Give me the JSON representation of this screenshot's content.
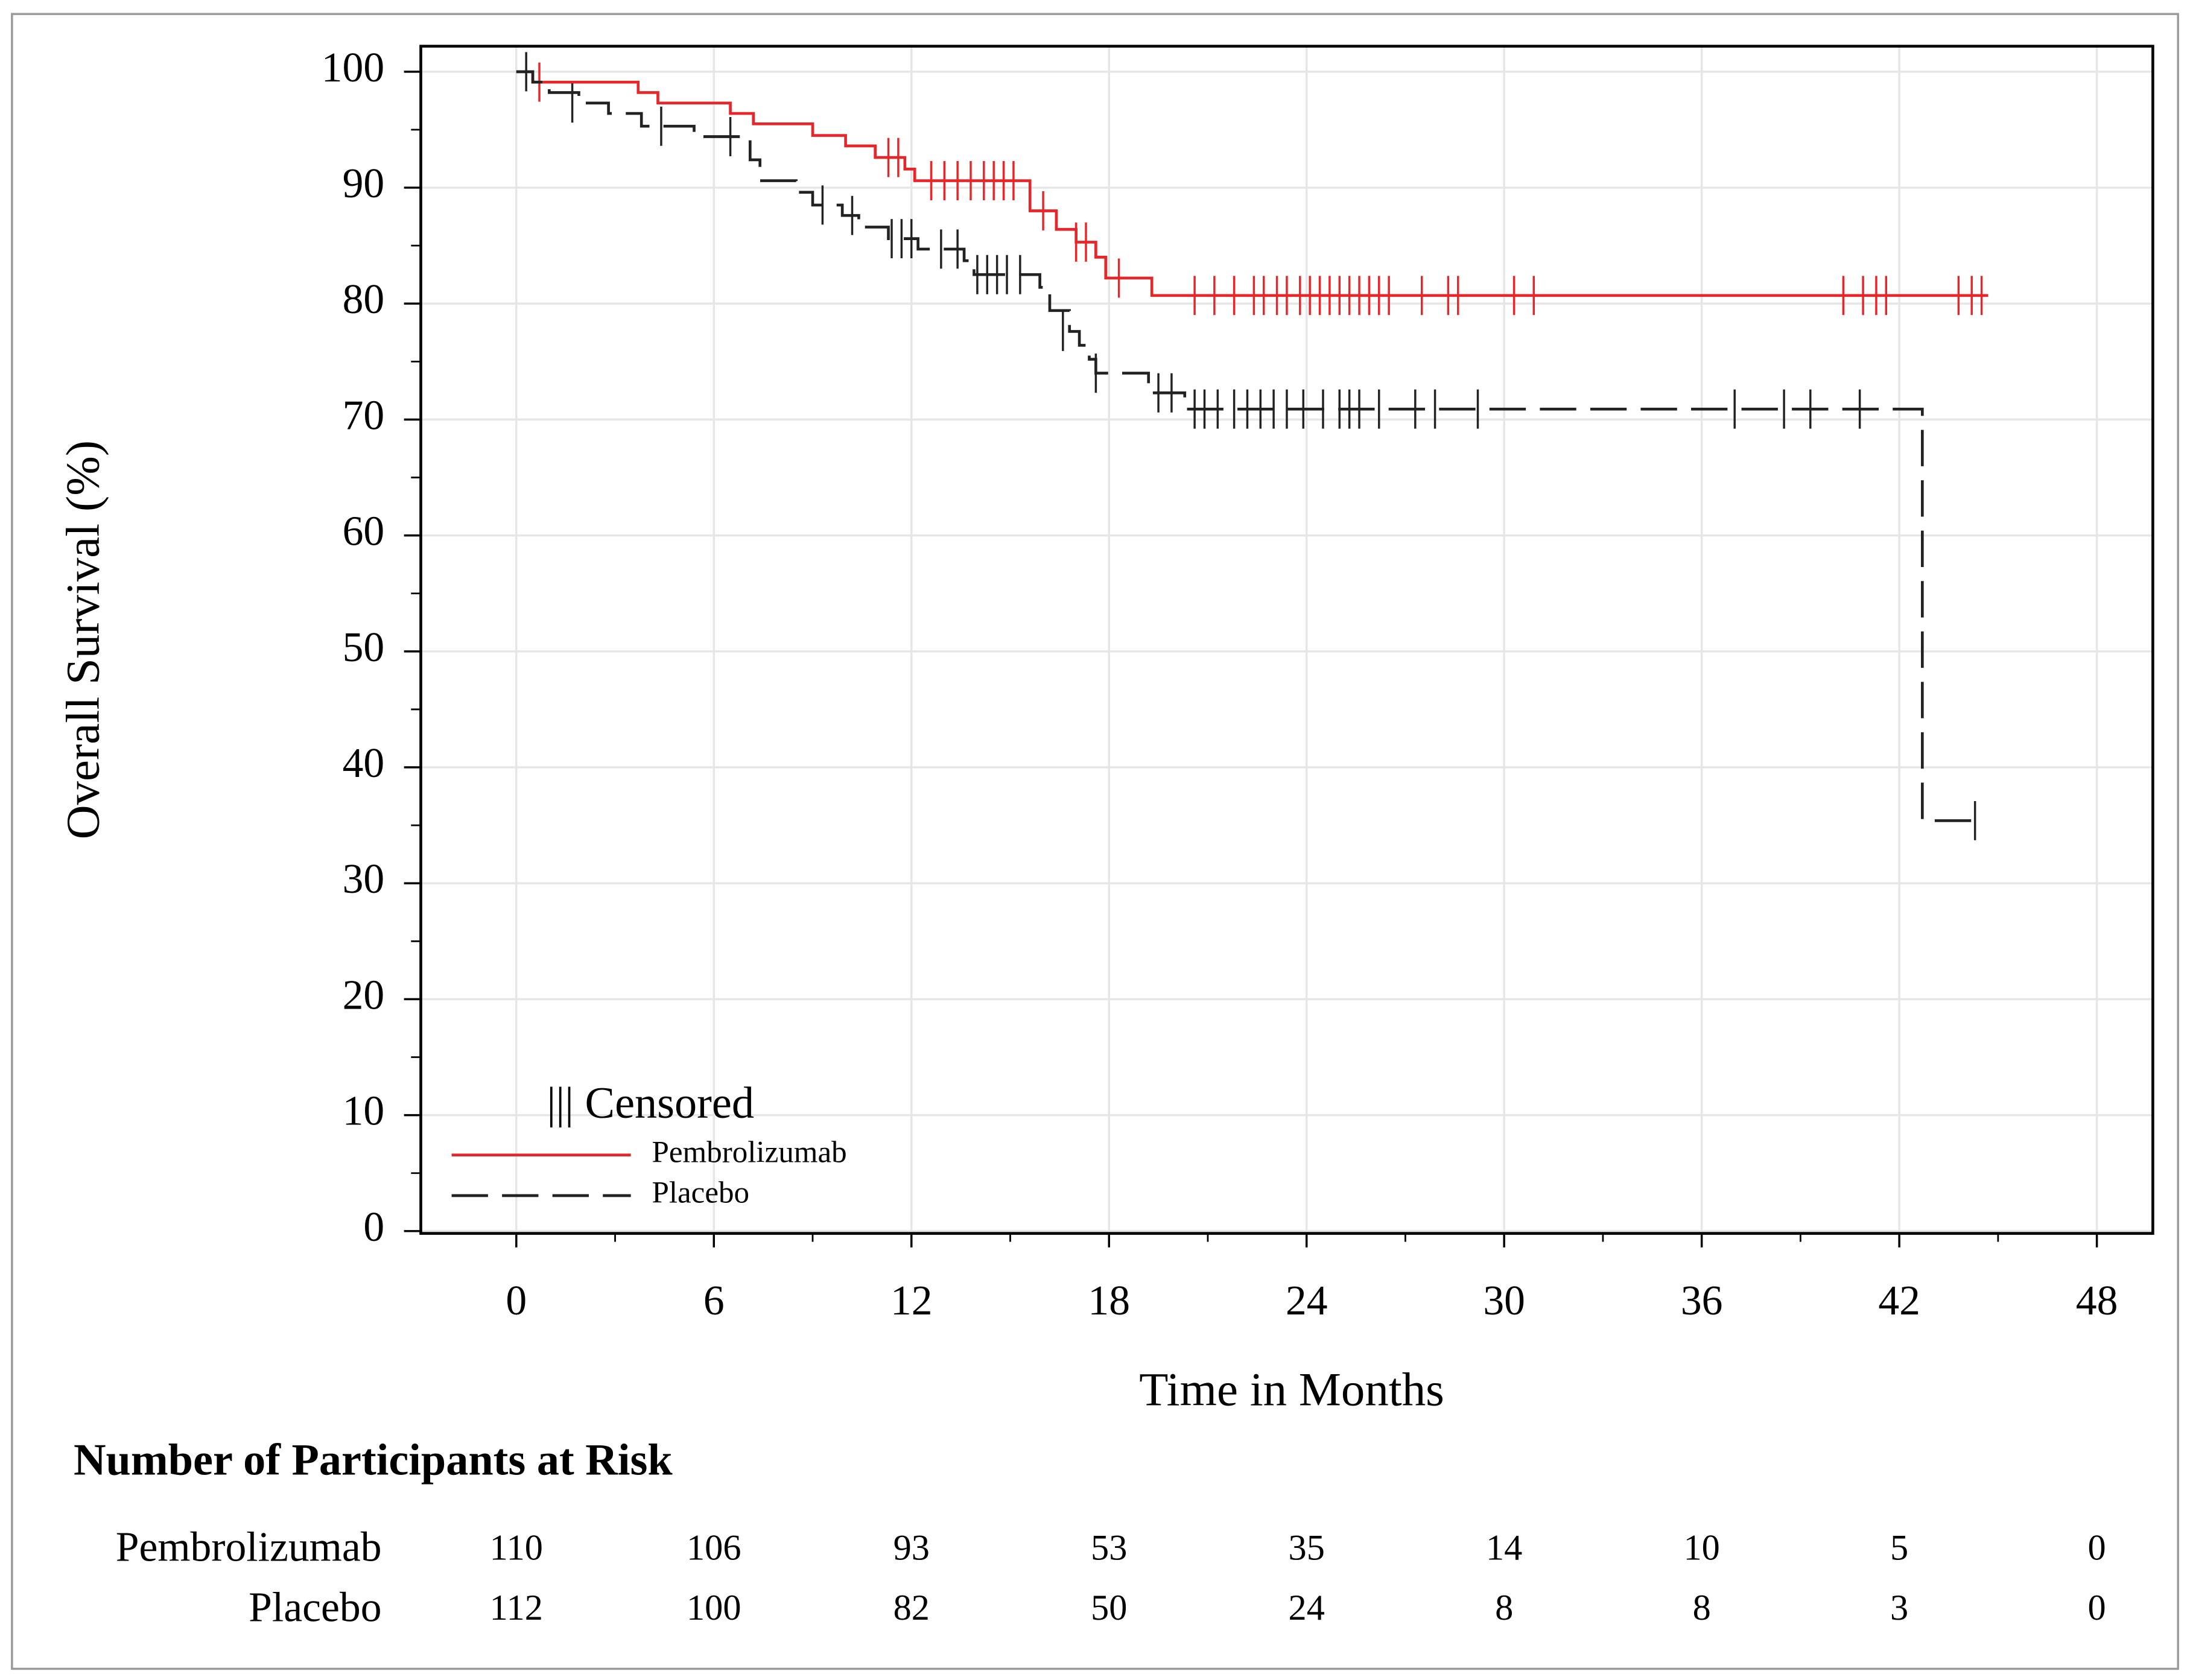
{
  "chart_data": {
    "type": "km",
    "ylabel": "Overall Survival (%)",
    "xlabel": "Time in Months",
    "xlim": [
      -2.9,
      49.7
    ],
    "xticks": [
      0,
      6,
      12,
      18,
      24,
      30,
      36,
      42,
      48
    ],
    "ylim": [
      -0.2,
      102.2
    ],
    "yticks": [
      0,
      10,
      20,
      30,
      40,
      50,
      60,
      70,
      80,
      90,
      100
    ],
    "grid": true,
    "censor_label": "||| Censored",
    "series": [
      {
        "name": "Pembrolizumab",
        "color": "#e8262a",
        "dash": false,
        "x": [
          0,
          0.5,
          3.7,
          4.3,
          6.5,
          7.2,
          9.0,
          10.0,
          10.9,
          11.8,
          12.1,
          15.6,
          16.4,
          17.0,
          17.6,
          17.9,
          19.3,
          44.7
        ],
        "values": [
          100,
          99.1,
          98.2,
          97.3,
          96.4,
          95.5,
          94.5,
          93.6,
          92.6,
          91.6,
          90.6,
          88.0,
          86.4,
          85.3,
          84.0,
          82.2,
          80.7,
          80.7
        ],
        "censored": {
          "x": [
            0.7,
            11.3,
            11.6,
            12.6,
            13.0,
            13.4,
            13.8,
            14.2,
            14.5,
            14.8,
            15.1,
            16.0,
            17.0,
            17.3,
            18.3,
            20.6,
            21.2,
            21.8,
            22.4,
            22.7,
            23.1,
            23.4,
            23.8,
            24.1,
            24.4,
            24.7,
            25.0,
            25.3,
            25.6,
            25.9,
            26.2,
            26.5,
            27.5,
            28.3,
            28.6,
            30.3,
            30.9,
            40.3,
            40.9,
            41.3,
            41.6,
            43.8,
            44.2,
            44.5
          ],
          "values": [
            99.1,
            92.6,
            92.6,
            90.6,
            90.6,
            90.6,
            90.6,
            90.6,
            90.6,
            90.6,
            90.6,
            88.0,
            85.3,
            85.3,
            82.2,
            80.7,
            80.7,
            80.7,
            80.7,
            80.7,
            80.7,
            80.7,
            80.7,
            80.7,
            80.7,
            80.7,
            80.7,
            80.7,
            80.7,
            80.7,
            80.7,
            80.7,
            80.7,
            80.7,
            80.7,
            80.7,
            80.7,
            80.7,
            80.7,
            80.7,
            80.7,
            80.7,
            80.7,
            80.7
          ]
        }
      },
      {
        "name": "Placebo",
        "color": "#222222",
        "dash": true,
        "x": [
          0,
          0.5,
          1.0,
          1.9,
          2.8,
          3.8,
          5.4,
          7.1,
          7.4,
          8.5,
          9.0,
          9.9,
          10.4,
          11.3,
          12.2,
          13.6,
          13.9,
          15.9,
          16.2,
          16.8,
          17.1,
          17.4,
          17.6,
          19.2,
          20.3,
          42.7,
          44.3
        ],
        "values": [
          100,
          99.1,
          98.2,
          97.3,
          96.4,
          95.3,
          94.4,
          92.4,
          90.6,
          89.6,
          88.5,
          87.6,
          86.6,
          85.6,
          84.7,
          83.7,
          82.5,
          81.4,
          79.4,
          77.6,
          76.4,
          75.2,
          74.0,
          72.3,
          70.9,
          35.4,
          35.4
        ],
        "censored": {
          "x": [
            0.3,
            1.7,
            4.4,
            6.5,
            9.3,
            10.2,
            11.4,
            11.7,
            12.0,
            12.9,
            13.4,
            14.0,
            14.3,
            14.6,
            14.9,
            15.3,
            16.6,
            17.6,
            19.5,
            19.9,
            20.6,
            20.9,
            21.3,
            21.8,
            22.2,
            22.6,
            23.0,
            23.4,
            23.9,
            24.5,
            25.0,
            25.3,
            25.6,
            26.2,
            27.3,
            27.9,
            29.2,
            37.0,
            38.5,
            39.3,
            40.8,
            44.3
          ],
          "values": [
            100,
            97.3,
            95.3,
            94.4,
            88.5,
            87.6,
            85.6,
            85.6,
            85.6,
            84.7,
            84.7,
            82.5,
            82.5,
            82.5,
            82.5,
            82.5,
            77.6,
            74.0,
            72.3,
            72.3,
            70.9,
            70.9,
            70.9,
            70.9,
            70.9,
            70.9,
            70.9,
            70.9,
            70.9,
            70.9,
            70.9,
            70.9,
            70.9,
            70.9,
            70.9,
            70.9,
            70.9,
            70.9,
            70.9,
            70.9,
            70.9,
            35.4
          ]
        }
      }
    ],
    "risk_table": {
      "title": "Number of Participants at Risk",
      "rows": [
        {
          "name": "Pembrolizumab",
          "values": [
            110,
            106,
            93,
            53,
            35,
            14,
            10,
            5,
            0
          ]
        },
        {
          "name": "Placebo",
          "values": [
            112,
            100,
            82,
            50,
            24,
            8,
            8,
            3,
            0
          ]
        }
      ]
    }
  }
}
